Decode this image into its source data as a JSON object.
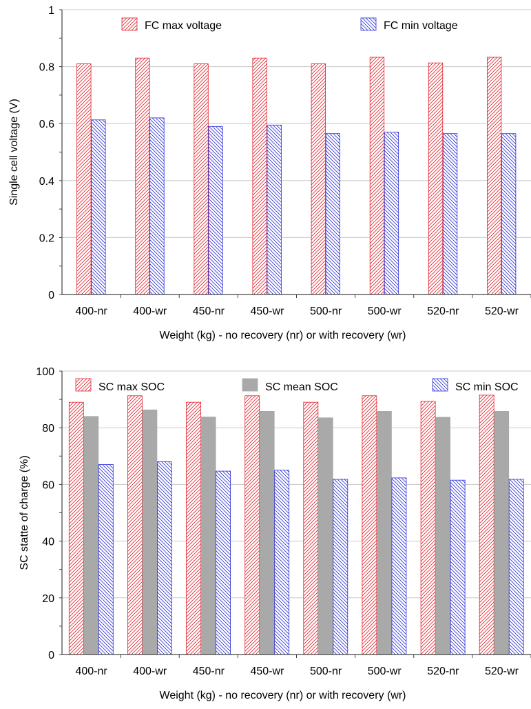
{
  "colors": {
    "red": "#e0212b",
    "blue": "#2b2fd6",
    "gray": "#a9a9a9",
    "grid": "#c8c8c8"
  },
  "chart_data": [
    {
      "type": "bar",
      "categories": [
        "400-nr",
        "400-wr",
        "450-nr",
        "450-wr",
        "500-nr",
        "500-wr",
        "520-nr",
        "520-wr"
      ],
      "series": [
        {
          "name": "FC max voltage",
          "values": [
            0.81,
            0.83,
            0.81,
            0.83,
            0.81,
            0.833,
            0.813,
            0.833
          ],
          "color": "red",
          "pattern": "hatch-forward"
        },
        {
          "name": "FC min voltage",
          "values": [
            0.613,
            0.62,
            0.59,
            0.595,
            0.565,
            0.57,
            0.565,
            0.565
          ],
          "color": "blue",
          "pattern": "hatch-backward"
        }
      ],
      "xlabel": "Weight (kg) - no recovery (nr) or with recovery (wr)",
      "ylabel": "Single cell voltage (V)",
      "ylim": [
        0,
        1
      ],
      "yticks": [
        "0",
        "0.2",
        "0.4",
        "0.6",
        "0.8",
        "1"
      ],
      "ytick_values": [
        0,
        0.2,
        0.4,
        0.6,
        0.8,
        1
      ],
      "grid": true,
      "legend": "top"
    },
    {
      "type": "bar",
      "categories": [
        "400-nr",
        "400-wr",
        "450-nr",
        "450-wr",
        "500-nr",
        "500-wr",
        "520-nr",
        "520-wr"
      ],
      "series": [
        {
          "name": "SC max SOC",
          "values": [
            89,
            91.3,
            89,
            91.3,
            89,
            91.3,
            89.3,
            91.5
          ],
          "color": "red",
          "pattern": "hatch-forward"
        },
        {
          "name": "SC mean SOC",
          "values": [
            84,
            86.3,
            83.8,
            85.8,
            83.5,
            85.8,
            83.7,
            85.8
          ],
          "color": "gray",
          "pattern": "solid"
        },
        {
          "name": "SC min SOC",
          "values": [
            67,
            68,
            64.7,
            65,
            61.8,
            62.3,
            61.5,
            61.8
          ],
          "color": "blue",
          "pattern": "hatch-backward"
        }
      ],
      "xlabel": "Weight (kg) - no recovery (nr) or with recovery (wr)",
      "ylabel": "SC statte of charge (%)",
      "ylim": [
        0,
        100
      ],
      "yticks": [
        "0",
        "20",
        "40",
        "60",
        "80",
        "100"
      ],
      "ytick_values": [
        0,
        20,
        40,
        60,
        80,
        100
      ],
      "grid": true,
      "legend": "top"
    }
  ]
}
